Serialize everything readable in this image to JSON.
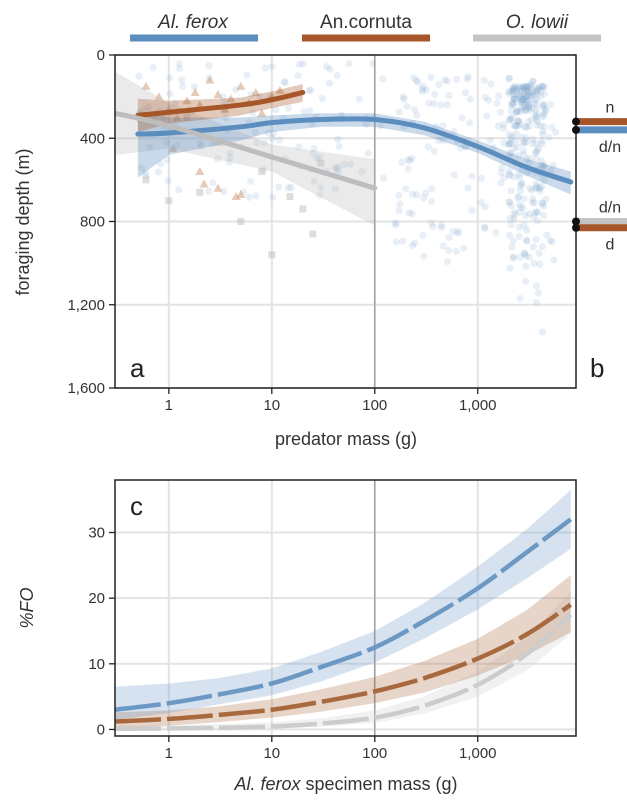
{
  "legend": [
    {
      "label": "Al. ferox",
      "italic": true,
      "color": "#5b8dbe"
    },
    {
      "label": "An.cornuta",
      "italic": false,
      "color": "#a65628"
    },
    {
      "label": "O. lowii",
      "italic": true,
      "color": "#c4c4c4"
    }
  ],
  "chart_data": [
    {
      "panel": "a",
      "type": "scatter",
      "xlabel": "predator mass (g)",
      "ylabel": "foraging depth (m)",
      "x_scale": "log",
      "xlim": [
        0.3,
        9000
      ],
      "ylim": [
        1600,
        0
      ],
      "y_inverted": true,
      "x_ticks": [
        1,
        10,
        100,
        1000
      ],
      "x_tick_labels": [
        "1",
        "10",
        "100",
        "1,000"
      ],
      "y_ticks": [
        0,
        400,
        800,
        1200,
        1600
      ],
      "y_tick_labels": [
        "0",
        "400",
        "800",
        "1,200",
        "1,600"
      ],
      "reference_line_x": 100,
      "grid": true,
      "series": [
        {
          "name": "Al. ferox",
          "color": "#5b8dbe",
          "fit_x": [
            0.5,
            1,
            5,
            10,
            30,
            100,
            300,
            1000,
            3000,
            8000
          ],
          "fit_y": [
            380,
            375,
            345,
            325,
            310,
            310,
            350,
            440,
            540,
            610
          ],
          "ci_lower": [
            270,
            300,
            300,
            290,
            280,
            280,
            320,
            410,
            500,
            560
          ],
          "ci_upper": [
            590,
            480,
            410,
            370,
            345,
            345,
            385,
            470,
            580,
            670
          ]
        },
        {
          "name": "An.cornuta",
          "color": "#a65628",
          "fit_x": [
            0.5,
            1,
            5,
            10,
            20
          ],
          "fit_y": [
            290,
            275,
            240,
            215,
            180
          ],
          "ci_lower": [
            210,
            220,
            205,
            175,
            140
          ],
          "ci_upper": [
            370,
            330,
            290,
            255,
            225
          ],
          "points_x": [
            0.6,
            0.8,
            1,
            1.2,
            1.5,
            1.8,
            2,
            2.5,
            3,
            3.5,
            4,
            5,
            6,
            7,
            8,
            10,
            12,
            2,
            3,
            5,
            1.1,
            2.2,
            4.5
          ],
          "points_y": [
            150,
            200,
            260,
            300,
            220,
            180,
            240,
            120,
            190,
            260,
            210,
            150,
            230,
            180,
            280,
            200,
            170,
            560,
            640,
            670,
            450,
            620,
            680
          ]
        },
        {
          "name": "O. lowii",
          "color": "#bdbdbd",
          "fit_x": [
            0.3,
            1,
            10,
            100
          ],
          "fit_y": [
            280,
            340,
            490,
            640
          ],
          "ci_lower": [
            80,
            230,
            430,
            500
          ],
          "ci_upper": [
            480,
            450,
            560,
            820
          ],
          "points_x": [
            0.6,
            1,
            2,
            5,
            10,
            20,
            30,
            1.5,
            3,
            8,
            15,
            25
          ],
          "points_y": [
            600,
            700,
            660,
            800,
            960,
            740,
            520,
            300,
            420,
            560,
            680,
            860
          ]
        }
      ]
    },
    {
      "panel": "b",
      "type": "categorical-depth",
      "series": [
        {
          "name": "An.cornuta",
          "color": "#a65628",
          "depth": 320,
          "label": "n"
        },
        {
          "name": "Al. ferox",
          "color": "#5b8dbe",
          "depth": 360,
          "label": "d/n"
        },
        {
          "name": "O. lowii",
          "color": "#c4c4c4",
          "depth": 800,
          "label": "d/n"
        },
        {
          "name": "An.cornuta",
          "color": "#a65628",
          "depth": 830,
          "label": "d"
        }
      ]
    },
    {
      "panel": "c",
      "type": "line",
      "xlabel_prefix": "Al. ferox",
      "xlabel_suffix": " specimen mass (g)",
      "ylabel": "%FO",
      "x_scale": "log",
      "xlim": [
        0.3,
        9000
      ],
      "ylim": [
        -1,
        38
      ],
      "x_ticks": [
        1,
        10,
        100,
        1000
      ],
      "x_tick_labels": [
        "1",
        "10",
        "100",
        "1,000"
      ],
      "y_ticks": [
        0,
        10,
        20,
        30
      ],
      "y_tick_labels": [
        "0",
        "10",
        "20",
        "30"
      ],
      "reference_line_x": 100,
      "grid": true,
      "series": [
        {
          "name": "Al. ferox",
          "color": "#6c98c4",
          "x": [
            0.3,
            1,
            3,
            10,
            30,
            100,
            300,
            1000,
            3000,
            8000
          ],
          "y": [
            3,
            4,
            5.3,
            7,
            9.5,
            12.5,
            16.5,
            21.5,
            27,
            32
          ],
          "ci_lower": [
            1.5,
            2.5,
            3.8,
            5.2,
            7.3,
            10.2,
            13.8,
            18.3,
            23,
            27.5
          ],
          "ci_upper": [
            6.5,
            7,
            7.8,
            9.3,
            11.8,
            15,
            19.2,
            24.8,
            30.5,
            36.5
          ]
        },
        {
          "name": "An.cornuta",
          "color": "#a9693e",
          "x": [
            0.3,
            1,
            3,
            10,
            30,
            100,
            300,
            1000,
            3000,
            8000
          ],
          "y": [
            1.2,
            1.6,
            2.2,
            3,
            4.2,
            5.8,
            7.8,
            10.8,
            14.5,
            19
          ],
          "ci_lower": [
            0.3,
            0.6,
            1.1,
            1.8,
            2.7,
            4,
            5.6,
            8.2,
            11.3,
            14.8
          ],
          "ci_upper": [
            2.6,
            2.9,
            3.5,
            4.6,
            6.1,
            8,
            10.4,
            13.8,
            18.2,
            23.5
          ]
        },
        {
          "name": "O. lowii",
          "color": "#cccccc",
          "x": [
            0.3,
            1,
            3,
            10,
            30,
            100,
            300,
            1000,
            3000,
            8000
          ],
          "y": [
            0.1,
            0.15,
            0.25,
            0.45,
            0.9,
            1.8,
            3.6,
            6.8,
            11.5,
            17.5
          ],
          "ci_lower": [
            0,
            0,
            0.05,
            0.15,
            0.4,
            1,
            2.4,
            5,
            9,
            14.5
          ],
          "ci_upper": [
            0.6,
            0.7,
            0.8,
            1.1,
            1.7,
            2.9,
            5,
            8.8,
            14,
            21
          ]
        }
      ]
    }
  ],
  "panel_labels": {
    "a": "a",
    "b": "b",
    "c": "c"
  }
}
